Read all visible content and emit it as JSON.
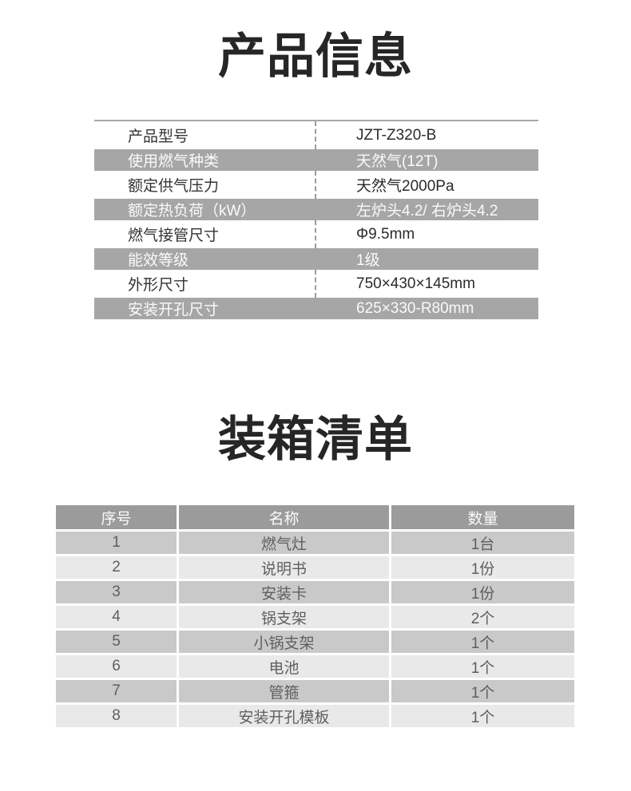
{
  "titles": {
    "product_info": "产品信息",
    "packing_list": "装箱清单"
  },
  "product_info": {
    "rows": [
      {
        "label": "产品型号",
        "value": "JZT-Z320-B"
      },
      {
        "label": "使用燃气种类",
        "value": "天然气(12T)"
      },
      {
        "label": "额定供气压力",
        "value": "天然气2000Pa"
      },
      {
        "label": "额定热负荷（kW）",
        "value": "左炉头4.2/ 右炉头4.2"
      },
      {
        "label": "燃气接管尺寸",
        "value": "Φ9.5mm"
      },
      {
        "label": "能效等级",
        "value": "1级"
      },
      {
        "label": "外形尺寸",
        "value": "750×430×145mm"
      },
      {
        "label": "安装开孔尺寸",
        "value": "625×330-R80mm"
      }
    ]
  },
  "packing_list": {
    "headers": [
      "序号",
      "名称",
      "数量"
    ],
    "rows": [
      {
        "no": "1",
        "name": "燃气灶",
        "qty": "1台"
      },
      {
        "no": "2",
        "name": "说明书",
        "qty": "1份"
      },
      {
        "no": "3",
        "name": "安装卡",
        "qty": "1份"
      },
      {
        "no": "4",
        "name": "锅支架",
        "qty": "2个"
      },
      {
        "no": "5",
        "name": "小锅支架",
        "qty": "1个"
      },
      {
        "no": "6",
        "name": "电池",
        "qty": "1个"
      },
      {
        "no": "7",
        "name": "管箍",
        "qty": "1个"
      },
      {
        "no": "8",
        "name": "安装开孔模板",
        "qty": "1个"
      }
    ]
  },
  "colors": {
    "title_text": "#262626",
    "spec_gray_row_bg": "#a6a6a6",
    "spec_top_border": "#a8a8a8",
    "spec_dashed_divider": "#9c9c9c",
    "pack_header_bg": "#9b9b9b",
    "pack_row_odd_bg": "#c9c9c9",
    "pack_row_even_bg": "#e9e9e9",
    "pack_body_text": "#5f5f5f"
  }
}
